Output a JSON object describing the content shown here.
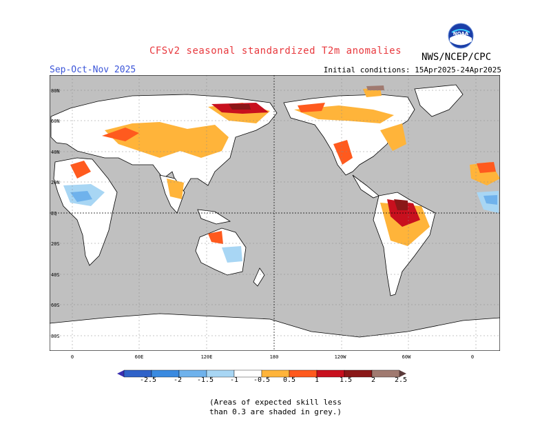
{
  "header": {
    "title": "CFSv2 seasonal standardized T2m anomalies",
    "organization": "NWS/NCEP/CPC",
    "period": "Sep-Oct-Nov 2025",
    "initial_conditions": "Initial conditions: 15Apr2025-24Apr2025",
    "logo_text": "NOAA"
  },
  "map": {
    "lat_labels": [
      "80N",
      "60N",
      "40N",
      "20N",
      "EQ",
      "20S",
      "40S",
      "60S",
      "80S"
    ],
    "lon_labels": [
      "0",
      "60E",
      "120E",
      "180",
      "120W",
      "60W",
      "0"
    ],
    "projection": "equirectangular, centered 180"
  },
  "colorbar": {
    "labels": [
      "-2.5",
      "-2",
      "-1.5",
      "-1",
      "-0.5",
      "0.5",
      "1",
      "1.5",
      "2",
      "2.5"
    ],
    "colors": [
      "#3a2fb0",
      "#2f62c8",
      "#3a8ae0",
      "#6fb2ec",
      "#a8d6f4",
      "#ffffff",
      "#ffb43a",
      "#ff5a1e",
      "#c8101e",
      "#8a1818",
      "#a07a70",
      "#5a3a3a"
    ]
  },
  "legend_note": {
    "line1": "(Areas of expected skill less",
    "line2": "than 0.3 are shaded in grey.)"
  },
  "colors": {
    "title": "#e8383d",
    "period": "#3a54d8",
    "land_low_skill": "#c0c0c0"
  }
}
